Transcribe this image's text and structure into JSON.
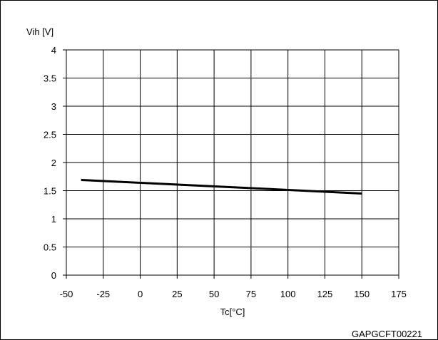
{
  "chart_data": {
    "type": "line",
    "title": "",
    "xlabel": "Tc[°C]",
    "ylabel": "Vih [V]",
    "xlim": [
      -50,
      175
    ],
    "ylim": [
      0,
      4
    ],
    "xticks": [
      -50,
      -25,
      0,
      25,
      50,
      75,
      100,
      125,
      150,
      175
    ],
    "yticks": [
      0,
      0.5,
      1,
      1.5,
      2,
      2.5,
      3,
      3.5,
      4
    ],
    "grid": true,
    "series": [
      {
        "x": [
          -40,
          150
        ],
        "y": [
          1.69,
          1.45
        ]
      }
    ],
    "colors": {
      "line": "#000000",
      "grid": "#000000",
      "background": "#ffffff"
    }
  },
  "figure_code": "GAPGCFT00221"
}
